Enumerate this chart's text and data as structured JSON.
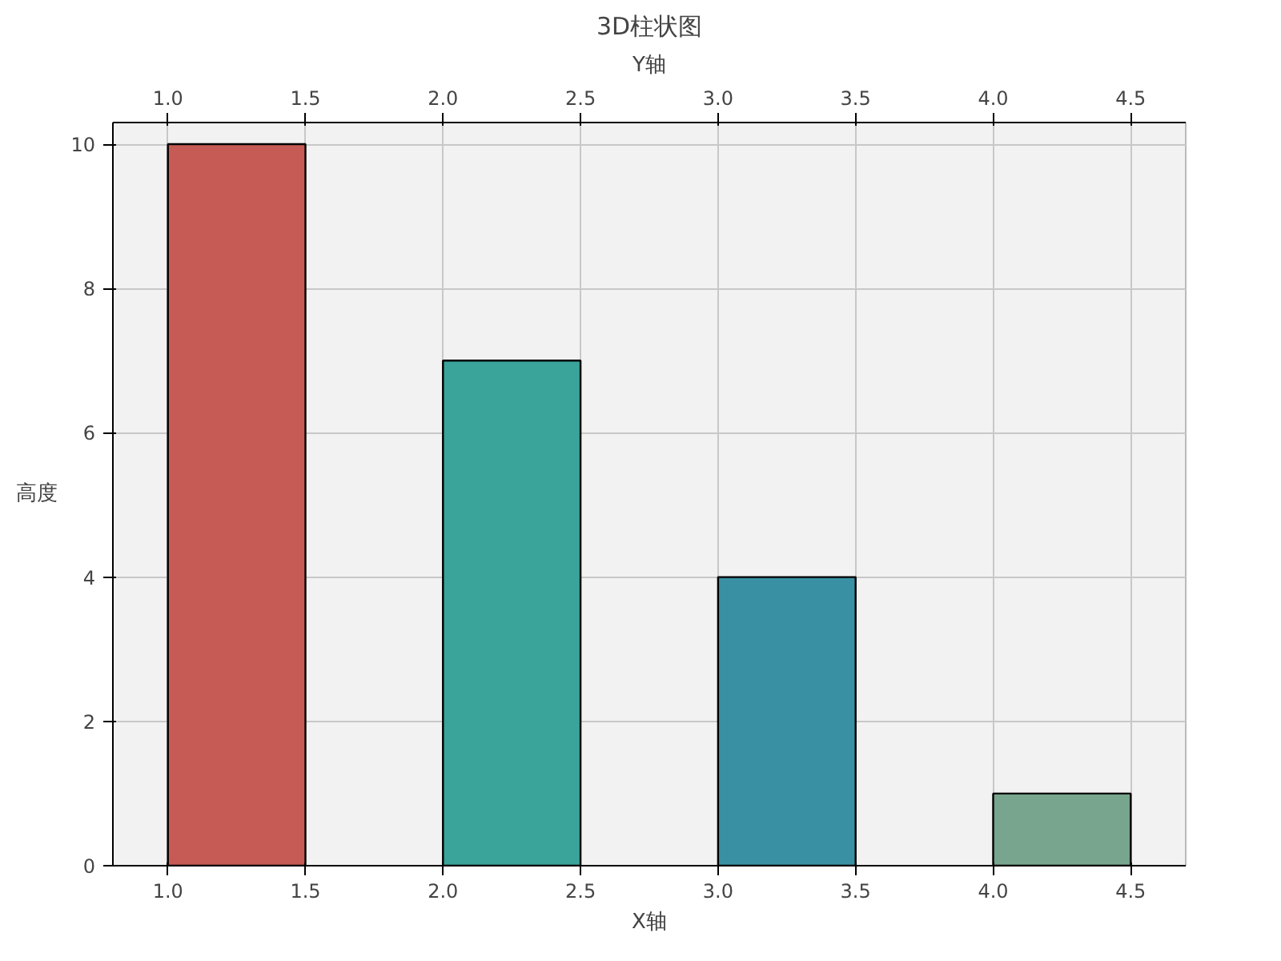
{
  "chart_data": {
    "type": "bar",
    "title": "3D柱状图",
    "xlabel": "X轴",
    "x2label": "Y轴",
    "ylabel": "高度",
    "x": [
      1.25,
      2.25,
      3.25,
      4.25
    ],
    "values": [
      10,
      7,
      4,
      1
    ],
    "colors": [
      "#c65a55",
      "#3aa39a",
      "#3a90a3",
      "#77a58d"
    ],
    "xlim": [
      0.8,
      4.7
    ],
    "xticks": [
      {
        "value": 1,
        "label": "1.0"
      },
      1.5,
      {
        "value": 2,
        "label": "2.0"
      },
      2.5,
      {
        "value": 3,
        "label": "3.0"
      },
      3.5,
      {
        "value": 4,
        "label": "4.0"
      },
      4.5
    ],
    "x2lim": [
      0.8,
      4.7
    ],
    "x2ticks": [
      {
        "value": 1,
        "label": "1.0"
      },
      1.5,
      {
        "value": 2,
        "label": "2.0"
      },
      2.5,
      {
        "value": 3,
        "label": "3.0"
      },
      3.5,
      {
        "value": 4,
        "label": "4.0"
      },
      4.5
    ],
    "ylim": [
      0,
      10.3
    ],
    "yticks": [
      0,
      2,
      4,
      6,
      8,
      10
    ],
    "grid": true
  }
}
